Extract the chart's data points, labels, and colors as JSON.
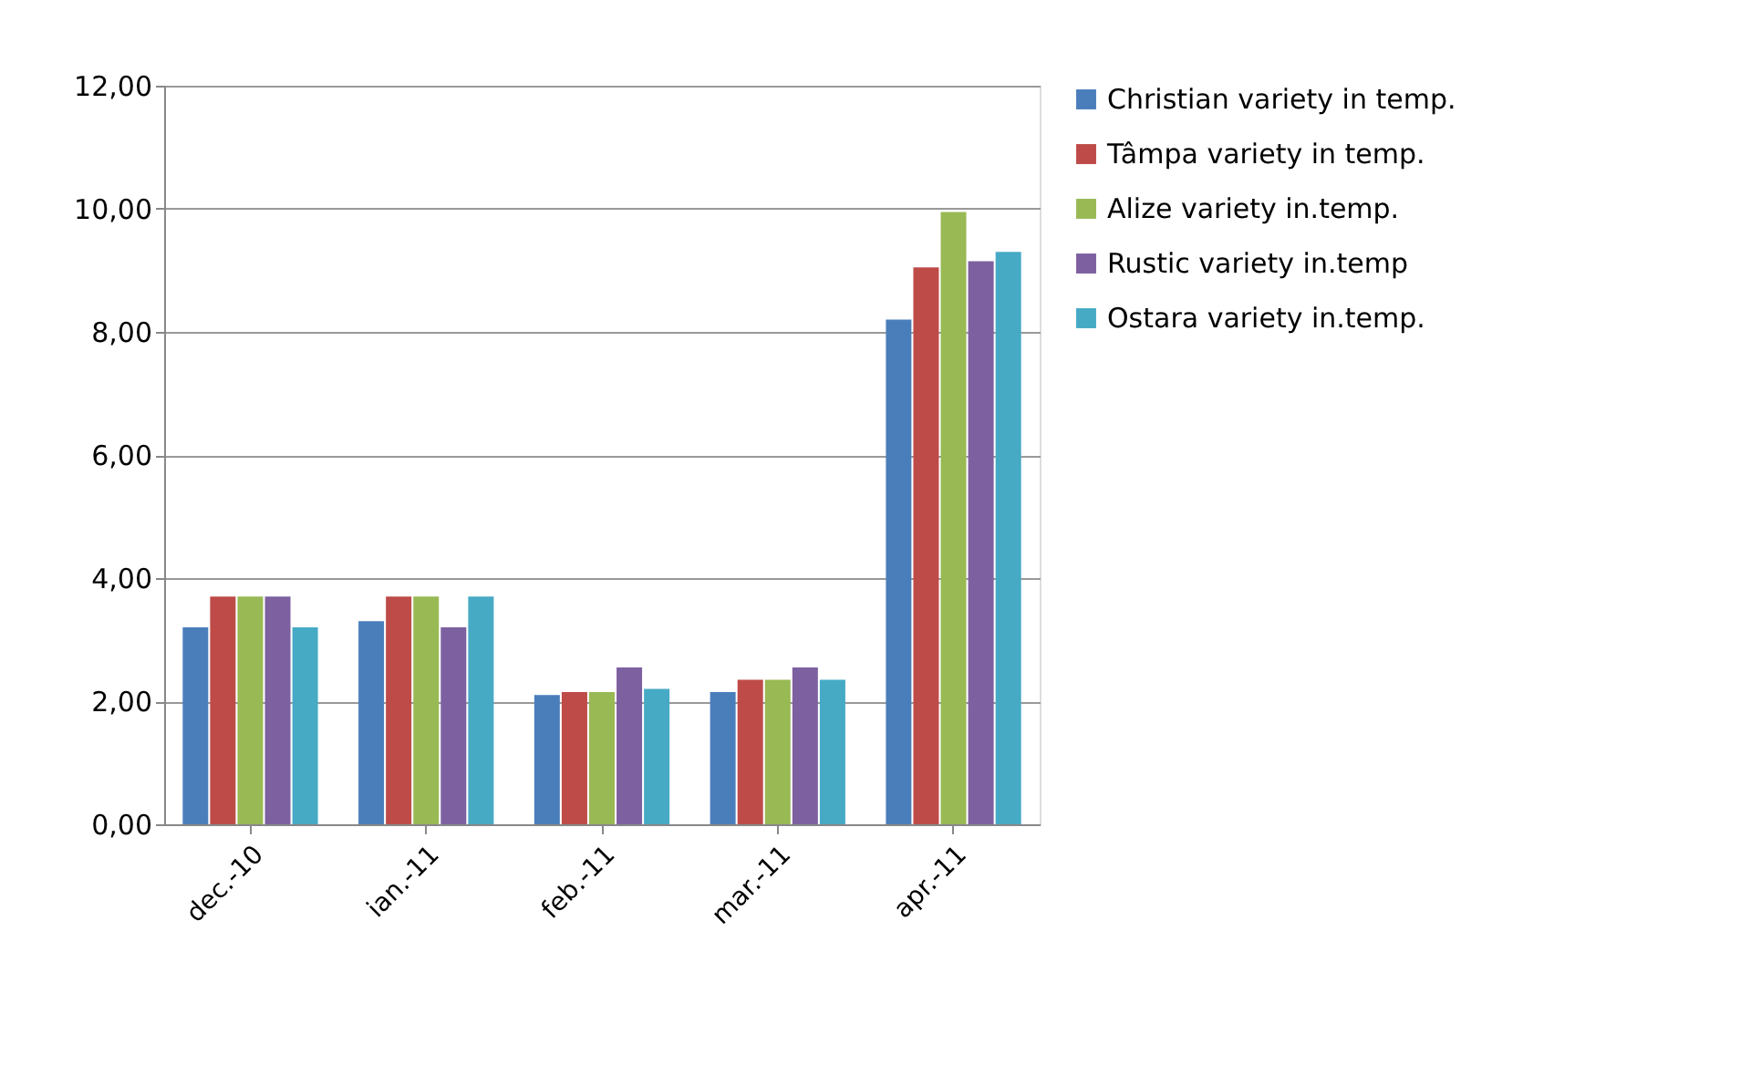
{
  "chart_data": {
    "type": "bar",
    "categories": [
      "dec.-10",
      "ian.-11",
      "feb.-11",
      "mar.-11",
      "apr.-11"
    ],
    "series": [
      {
        "name": "Christian variety in temp.",
        "color": "#4a7ebb",
        "values": [
          3.2,
          3.3,
          2.1,
          2.15,
          8.2
        ]
      },
      {
        "name": "Tâmpa variety in temp.",
        "color": "#be4b48",
        "values": [
          3.7,
          3.7,
          2.15,
          2.35,
          9.05
        ]
      },
      {
        "name": "Alize variety in.temp.",
        "color": "#98b954",
        "values": [
          3.7,
          3.7,
          2.15,
          2.35,
          9.95
        ]
      },
      {
        "name": "Rustic variety in.temp",
        "color": "#7d60a0",
        "values": [
          3.7,
          3.2,
          2.55,
          2.55,
          9.15
        ]
      },
      {
        "name": "Ostara variety in.temp.",
        "color": "#46aac5",
        "values": [
          3.2,
          3.7,
          2.2,
          2.35,
          9.3
        ]
      }
    ],
    "ylim": [
      0,
      12
    ],
    "yticks": [
      {
        "value": 0,
        "label": "0,00"
      },
      {
        "value": 2,
        "label": "2,00"
      },
      {
        "value": 4,
        "label": "4,00"
      },
      {
        "value": 6,
        "label": "6,00"
      },
      {
        "value": 8,
        "label": "8,00"
      },
      {
        "value": 10,
        "label": "10,00"
      },
      {
        "value": 12,
        "label": "12,00"
      }
    ],
    "grid": "y",
    "legend": "right"
  }
}
